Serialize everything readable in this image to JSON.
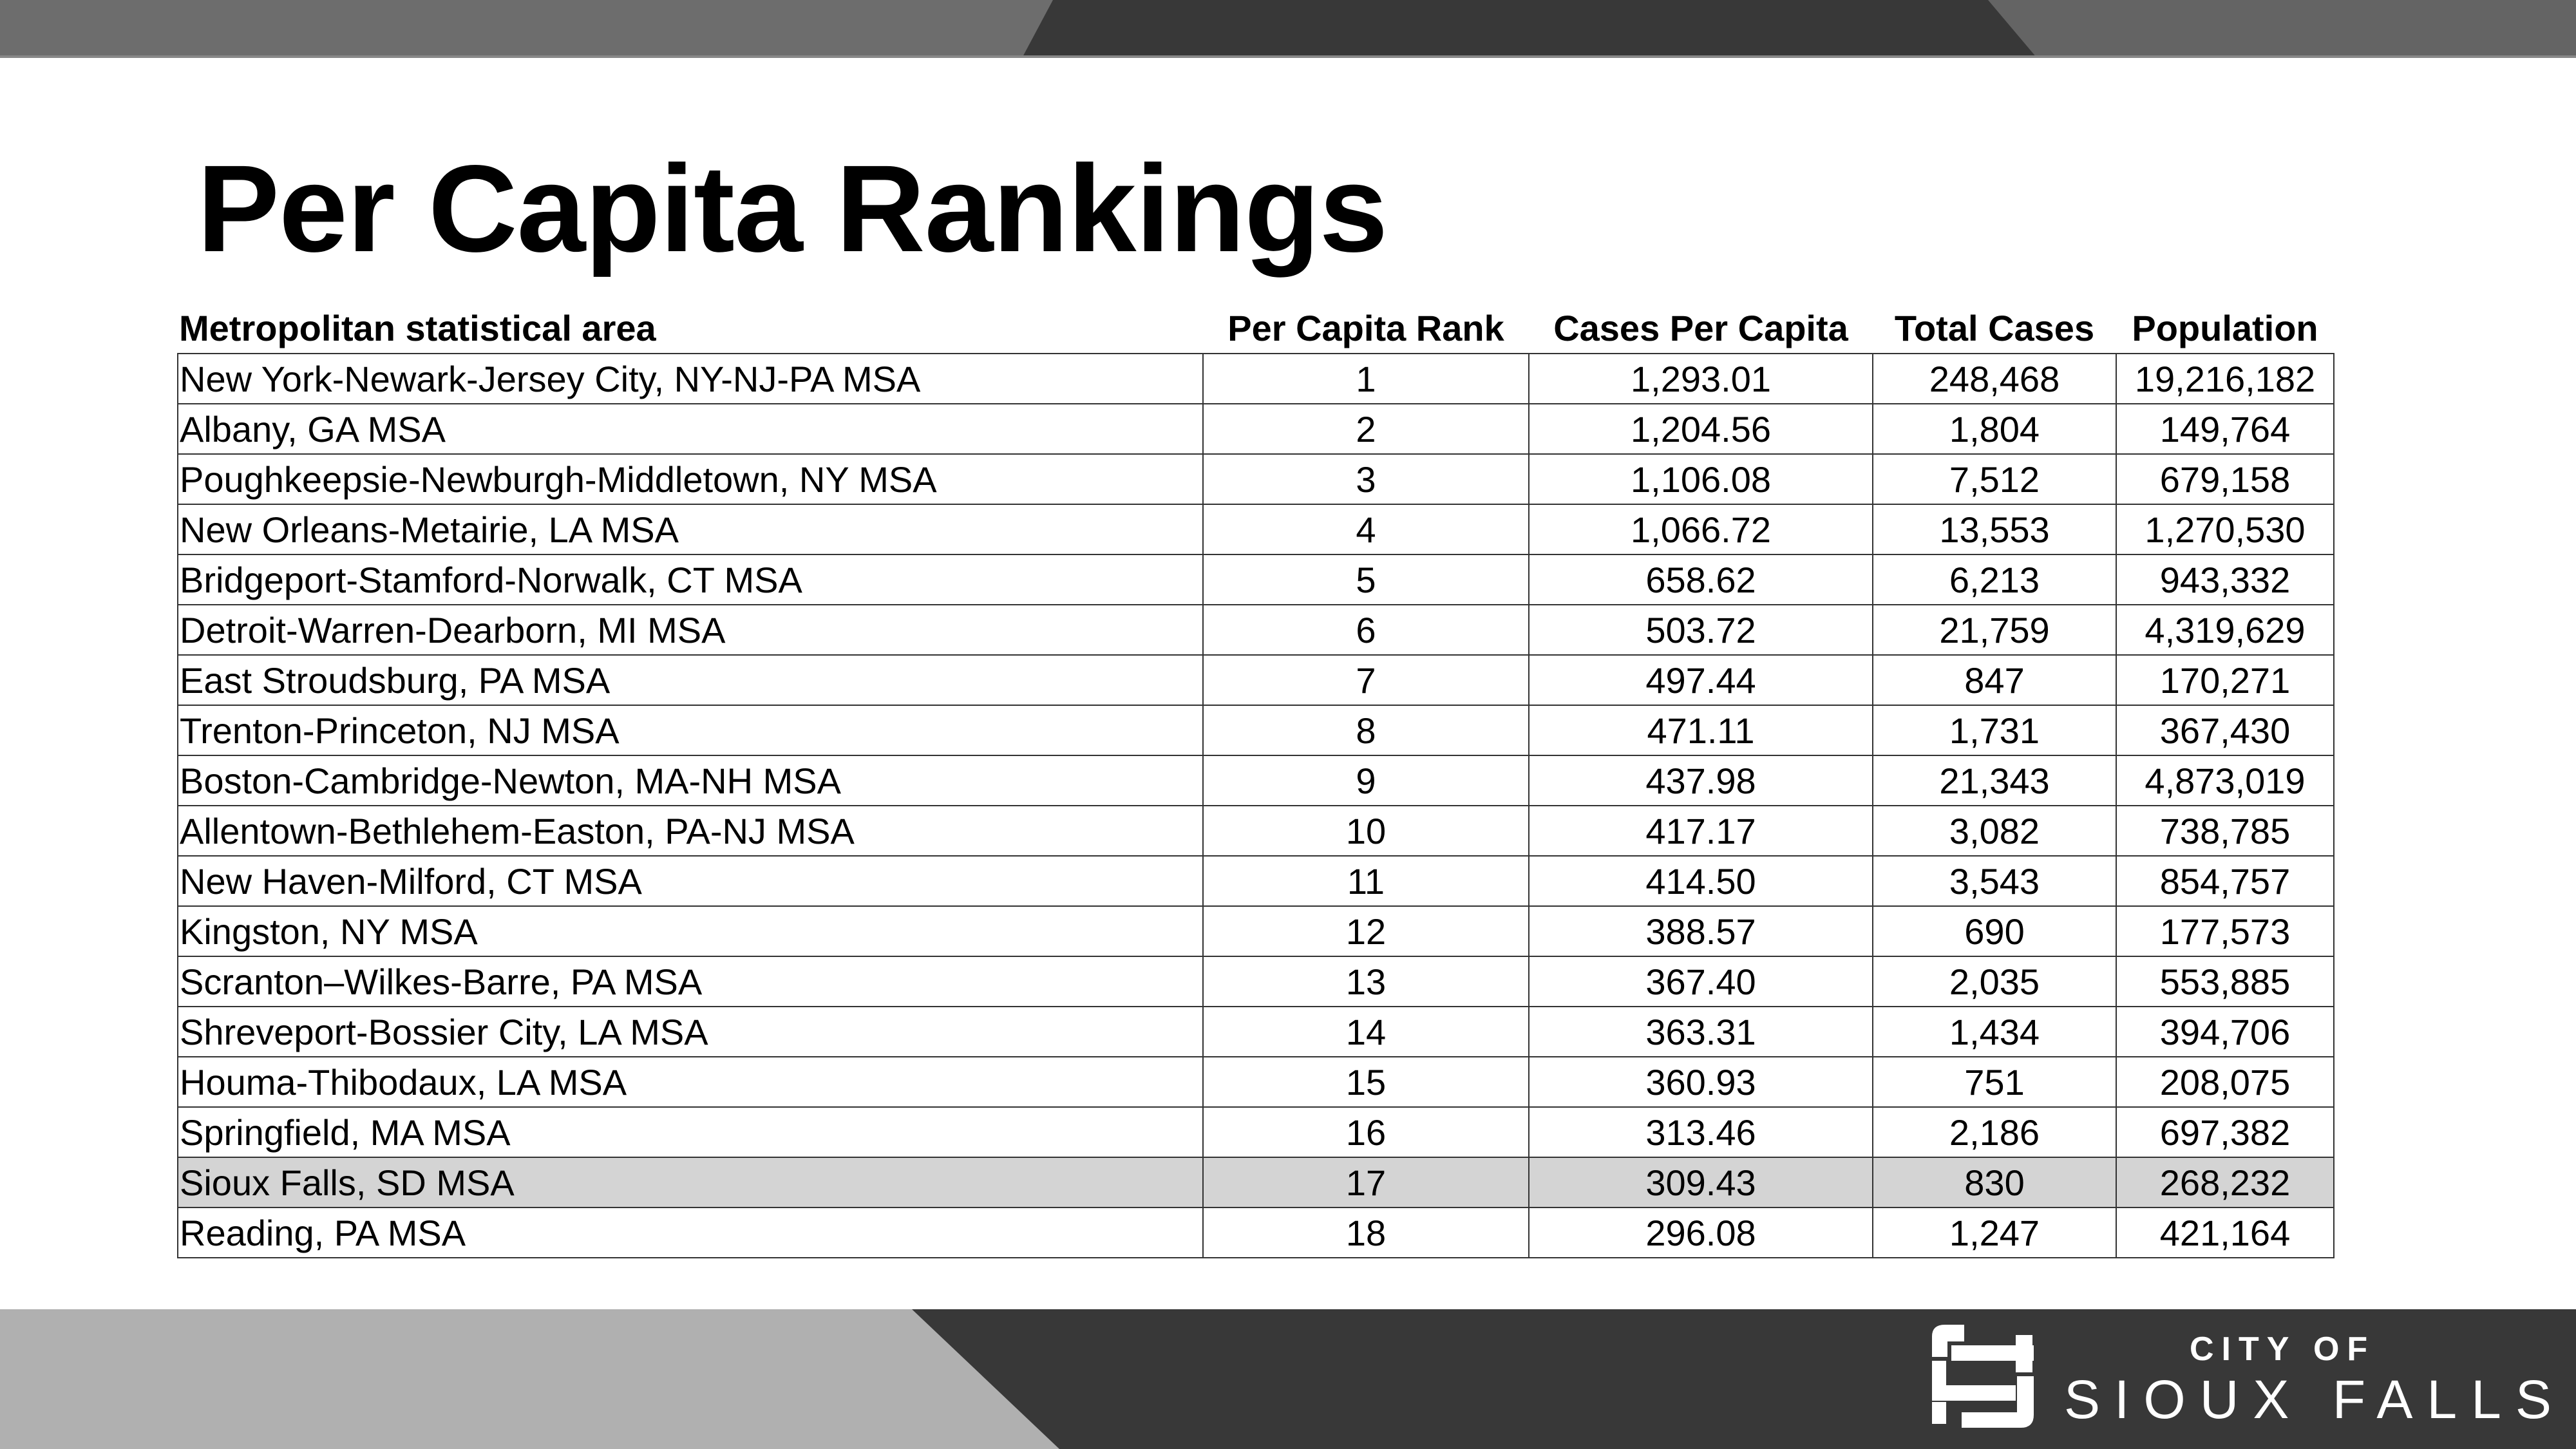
{
  "title": "Per Capita Rankings",
  "colors": {
    "top_left": "#6d6d6d",
    "top_center": "#383838",
    "top_right": "#646464",
    "bottom_left": "#b0b0b0",
    "bottom_dark": "#383838",
    "highlight_row": "#d4d4d4"
  },
  "table": {
    "headers": [
      "Metropolitan statistical area",
      "Per Capita Rank",
      "Cases Per Capita",
      "Total Cases",
      "Population"
    ],
    "rows": [
      [
        "New York-Newark-Jersey City, NY-NJ-PA MSA",
        "1",
        "1,293.01",
        "248,468",
        "19,216,182"
      ],
      [
        "Albany, GA MSA",
        "2",
        "1,204.56",
        "1,804",
        "149,764"
      ],
      [
        "Poughkeepsie-Newburgh-Middletown, NY MSA",
        "3",
        "1,106.08",
        "7,512",
        "679,158"
      ],
      [
        "New Orleans-Metairie, LA MSA",
        "4",
        "1,066.72",
        "13,553",
        "1,270,530"
      ],
      [
        "Bridgeport-Stamford-Norwalk, CT MSA",
        "5",
        "658.62",
        "6,213",
        "943,332"
      ],
      [
        "Detroit-Warren-Dearborn, MI MSA",
        "6",
        "503.72",
        "21,759",
        "4,319,629"
      ],
      [
        "East Stroudsburg, PA MSA",
        "7",
        "497.44",
        "847",
        "170,271"
      ],
      [
        "Trenton-Princeton, NJ MSA",
        "8",
        "471.11",
        "1,731",
        "367,430"
      ],
      [
        "Boston-Cambridge-Newton, MA-NH MSA",
        "9",
        "437.98",
        "21,343",
        "4,873,019"
      ],
      [
        "Allentown-Bethlehem-Easton, PA-NJ MSA",
        "10",
        "417.17",
        "3,082",
        "738,785"
      ],
      [
        "New Haven-Milford, CT MSA",
        "11",
        "414.50",
        "3,543",
        "854,757"
      ],
      [
        "Kingston, NY MSA",
        "12",
        "388.57",
        "690",
        "177,573"
      ],
      [
        "Scranton–Wilkes-Barre, PA MSA",
        "13",
        "367.40",
        "2,035",
        "553,885"
      ],
      [
        "Shreveport-Bossier City, LA MSA",
        "14",
        "363.31",
        "1,434",
        "394,706"
      ],
      [
        "Houma-Thibodaux, LA MSA",
        "15",
        "360.93",
        "751",
        "208,075"
      ],
      [
        "Springfield, MA MSA",
        "16",
        "313.46",
        "2,186",
        "697,382"
      ],
      [
        "Sioux Falls, SD MSA",
        "17",
        "309.43",
        "830",
        "268,232"
      ],
      [
        "Reading, PA MSA",
        "18",
        "296.08",
        "1,247",
        "421,164"
      ]
    ],
    "highlighted_rank": "17"
  },
  "logo": {
    "line1": "CITY OF",
    "line2": "SIOUX FALLS"
  }
}
